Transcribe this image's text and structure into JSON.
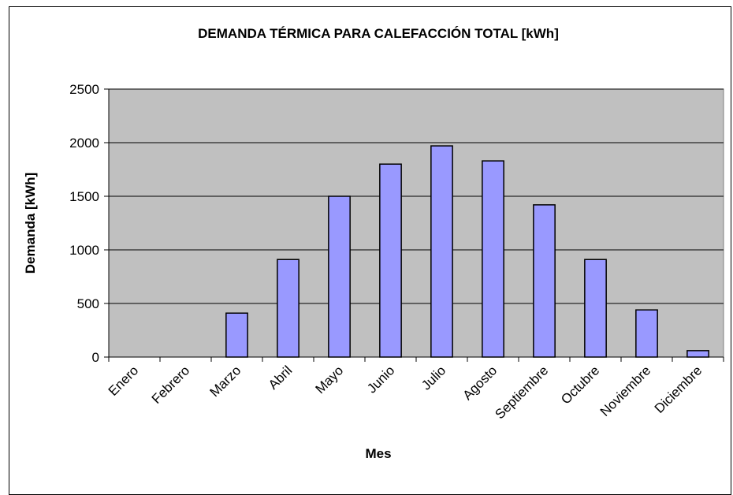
{
  "chart_data": {
    "type": "bar",
    "title": "DEMANDA TÉRMICA PARA CALEFACCIÓN TOTAL [kWh]",
    "x_label": "Mes",
    "y_label": "Demanda [kWh]",
    "categories": [
      "Enero",
      "Febrero",
      "Marzo",
      "Abril",
      "Mayo",
      "Junio",
      "Julio",
      "Agosto",
      "Septiembre",
      "Octubre",
      "Noviembre",
      "Diciembre"
    ],
    "values": [
      0,
      0,
      410,
      910,
      1500,
      1800,
      1970,
      1830,
      1420,
      910,
      440,
      60
    ],
    "color": "#9999ff",
    "ylim": [
      0,
      2500
    ],
    "yticks": [
      0,
      500,
      1000,
      1500,
      2000,
      2500
    ],
    "grid": true
  }
}
